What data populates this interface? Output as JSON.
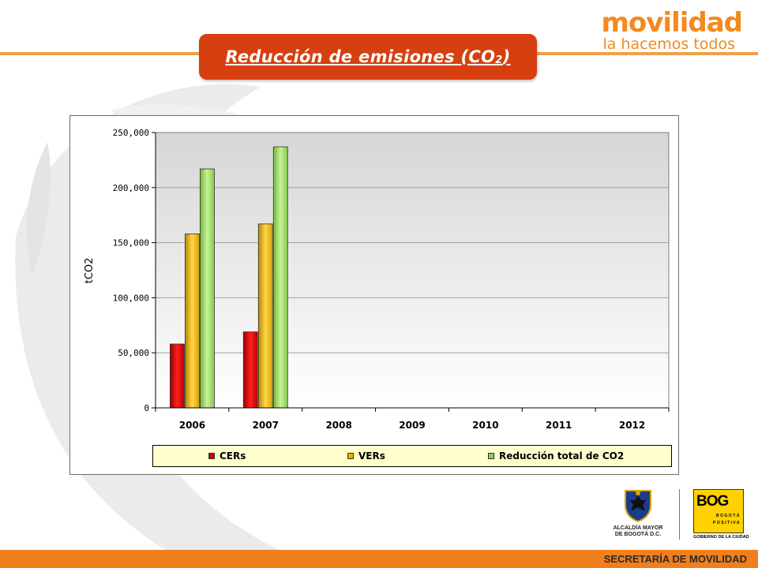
{
  "brand": {
    "main": "movilidad",
    "sub": "la hacemos todos"
  },
  "title": {
    "text": "Reducción de emisiones  (CO",
    "sub": "2",
    "close": ")"
  },
  "chart_data": {
    "type": "bar",
    "ylabel": "tCO2",
    "ylim": [
      0,
      250000
    ],
    "yticks": [
      0,
      50000,
      100000,
      150000,
      200000,
      250000
    ],
    "ytick_labels": [
      "0",
      "50,000",
      "100,000",
      "150,000",
      "200,000",
      "250,000"
    ],
    "categories": [
      "2006",
      "2007",
      "2008",
      "2009",
      "2010",
      "2011",
      "2012"
    ],
    "grid": true,
    "legend_position": "bottom",
    "series": [
      {
        "name": "CERs",
        "color": "#d40000",
        "values": [
          58000,
          69000,
          null,
          null,
          null,
          null,
          null
        ]
      },
      {
        "name": "VERs",
        "color": "#e8b200",
        "values": [
          158000,
          167000,
          null,
          null,
          null,
          null,
          null
        ]
      },
      {
        "name": "Reducción total de CO2",
        "color": "#8fd14f",
        "values": [
          217000,
          237000,
          null,
          null,
          null,
          null,
          null
        ]
      }
    ]
  },
  "logos": {
    "alcaldia_line1": "ALCALDÍA MAYOR",
    "alcaldia_line2": "DE BOGOTÁ D.C.",
    "bog_word": "BOG",
    "bog_line1": "BOGOTÁ",
    "bog_line2": "POSITIVA",
    "bog_caption": "GOBIERNO DE LA CIUDAD"
  },
  "footer": {
    "text": "SECRETARÍA DE MOVILIDAD"
  }
}
